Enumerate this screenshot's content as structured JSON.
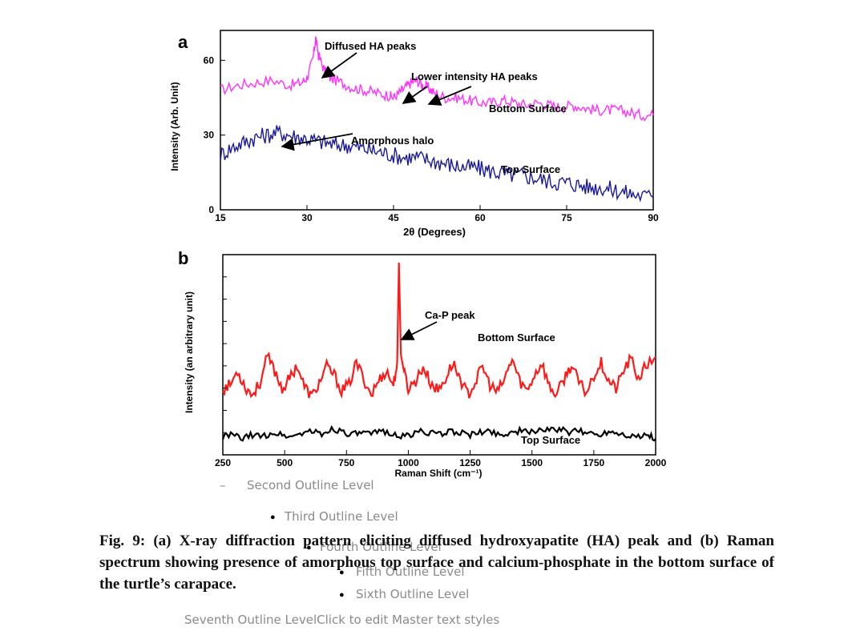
{
  "chart_data": [
    {
      "panel": "a",
      "type": "line",
      "xlabel": "2θ (Degrees)",
      "ylabel": "Intensity (Arb. Unit)",
      "xlim": [
        15,
        90
      ],
      "ylim": [
        0,
        72
      ],
      "xticks": [
        "15",
        "30",
        "45",
        "60",
        "75",
        "90"
      ],
      "yticks": [
        "0",
        "30",
        "60"
      ],
      "colors": {
        "bottom": "#ff33ff",
        "top": "#1a1a99"
      },
      "series": [
        {
          "name": "Bottom Surface",
          "x": [
            15,
            18,
            21,
            24,
            27,
            29,
            30,
            31,
            31.5,
            32,
            33,
            34,
            36,
            38,
            40,
            42,
            44,
            45,
            46,
            47,
            48,
            49,
            50,
            51,
            52,
            54,
            56,
            58,
            60,
            62,
            64,
            66,
            68,
            70,
            72,
            74,
            76,
            78,
            80,
            82,
            84,
            86,
            88,
            90
          ],
          "y": [
            48,
            50,
            51,
            52,
            50,
            51,
            53,
            60,
            69,
            62,
            56,
            53,
            51,
            49,
            48,
            47,
            46,
            45,
            47,
            49,
            51,
            52,
            50,
            49,
            47,
            45,
            45,
            44,
            43,
            43,
            44,
            43,
            42,
            43,
            42,
            41,
            42,
            41,
            40,
            40,
            40,
            39,
            38,
            38
          ]
        },
        {
          "name": "Top Surface",
          "x": [
            15,
            17,
            19,
            21,
            23,
            25,
            27,
            29,
            31,
            33,
            35,
            37,
            39,
            41,
            43,
            45,
            47,
            49,
            51,
            53,
            55,
            57,
            59,
            61,
            63,
            65,
            67,
            69,
            71,
            73,
            75,
            77,
            79,
            81,
            83,
            85,
            87,
            90
          ],
          "y": [
            22,
            25,
            27,
            29,
            30,
            31,
            30,
            29,
            28,
            27,
            26,
            26,
            25,
            24,
            23,
            22,
            21,
            21,
            20,
            19,
            18,
            17,
            17,
            16,
            15,
            14,
            14,
            13,
            12,
            11,
            11,
            10,
            9,
            9,
            8,
            7,
            6,
            5
          ]
        }
      ],
      "annotations": [
        "Diffused HA peaks",
        "Lower intensity HA peaks",
        "Amorphous halo",
        "Bottom Surface",
        "Top Surface"
      ]
    },
    {
      "panel": "b",
      "type": "line",
      "xlabel": "Raman Shift (cm⁻¹)",
      "ylabel": "Intensity (an arbitrary unit)",
      "xlim": [
        250,
        2000
      ],
      "ylim": [
        0,
        100
      ],
      "xticks": [
        "250",
        "500",
        "750",
        "1000",
        "1250",
        "1500",
        "1750",
        "2000"
      ],
      "colors": {
        "bottom": "#ff1a1a",
        "top": "#000000"
      },
      "series": [
        {
          "name": "Bottom Surface",
          "x": [
            250,
            280,
            310,
            340,
            370,
            400,
            430,
            460,
            490,
            520,
            550,
            580,
            610,
            640,
            670,
            700,
            730,
            760,
            790,
            820,
            850,
            880,
            910,
            940,
            955,
            962,
            970,
            985,
            1000,
            1030,
            1060,
            1090,
            1120,
            1150,
            1180,
            1210,
            1240,
            1270,
            1300,
            1330,
            1360,
            1390,
            1420,
            1450,
            1480,
            1510,
            1540,
            1570,
            1600,
            1630,
            1660,
            1690,
            1720,
            1750,
            1780,
            1810,
            1840,
            1870,
            1900,
            1930,
            1960,
            2000
          ],
          "y": [
            33,
            35,
            42,
            34,
            30,
            36,
            49,
            42,
            33,
            38,
            45,
            34,
            29,
            36,
            44,
            40,
            32,
            35,
            46,
            38,
            30,
            37,
            42,
            35,
            46,
            96,
            50,
            40,
            33,
            37,
            44,
            36,
            32,
            38,
            46,
            38,
            30,
            36,
            44,
            35,
            31,
            38,
            48,
            37,
            32,
            40,
            46,
            34,
            30,
            38,
            45,
            36,
            31,
            40,
            46,
            37,
            33,
            42,
            48,
            38,
            44,
            49
          ]
        },
        {
          "name": "Top Surface",
          "x": [
            250,
            290,
            330,
            370,
            410,
            450,
            490,
            530,
            570,
            610,
            650,
            690,
            730,
            770,
            810,
            850,
            890,
            930,
            970,
            1010,
            1050,
            1090,
            1130,
            1170,
            1210,
            1250,
            1290,
            1330,
            1370,
            1410,
            1450,
            1490,
            1530,
            1570,
            1610,
            1650,
            1690,
            1730,
            1770,
            1810,
            1850,
            1890,
            1930,
            1970,
            2000
          ],
          "y": [
            9,
            10,
            8,
            10,
            9,
            11,
            10,
            9,
            11,
            12,
            10,
            13,
            12,
            10,
            11,
            10,
            12,
            11,
            9,
            10,
            12,
            11,
            10,
            12,
            11,
            10,
            11,
            12,
            10,
            11,
            12,
            11,
            13,
            12,
            13,
            11,
            12,
            11,
            10,
            12,
            11,
            10,
            9,
            10,
            8
          ]
        }
      ],
      "annotations": [
        "Ca-P peak",
        "Bottom Surface",
        "Top Surface"
      ]
    }
  ],
  "panel_a": {
    "letter": "a",
    "ann_diffused": "Diffused HA peaks",
    "ann_lower": "Lower intensity HA peaks",
    "ann_amorphous": "Amorphous halo",
    "label_bottom": "Bottom Surface",
    "label_top": "Top Surface"
  },
  "panel_b": {
    "letter": "b",
    "ann_cap": "Ca-P peak",
    "label_bottom": "Bottom Surface",
    "label_top": "Top Surface"
  },
  "outline": {
    "second": "Second Outline Level",
    "third": "Third Outline Level",
    "fourth": "Fourth Outline Level",
    "fifth": "Fifth Outline Level",
    "sixth": "Sixth Outline Level",
    "seventh": "Seventh Outline LevelClick to edit Master text styles"
  },
  "caption": "Fig. 9: (a) X-ray diffraction pattern eliciting diffused hydroxyapatite (HA) peak and (b) Raman spectrum showing presence of amorphous top surface and calcium-phosphate in the bottom surface of the turtle’s carapace."
}
